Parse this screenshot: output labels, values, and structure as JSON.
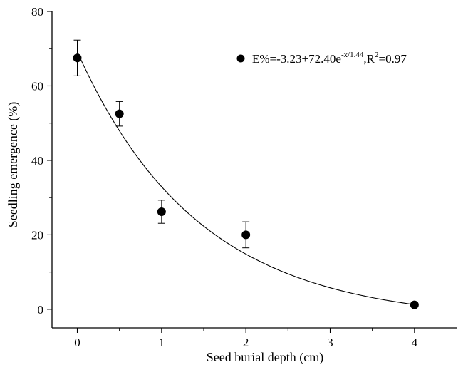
{
  "chart_data": {
    "type": "scatter",
    "xlabel": "Seed burial depth (cm)",
    "ylabel": "Seedling emergence (%)",
    "xlim": [
      -0.3,
      4.5
    ],
    "ylim": [
      -5,
      80
    ],
    "x_ticks": [
      0,
      1,
      2,
      3,
      4
    ],
    "y_ticks": [
      0,
      20,
      40,
      60,
      80
    ],
    "grid": false,
    "legend_position": "top-right",
    "points": [
      {
        "x": 0,
        "y": 67.5,
        "err": 4.8
      },
      {
        "x": 0.5,
        "y": 52.5,
        "err": 3.3
      },
      {
        "x": 1,
        "y": 26.2,
        "err": 3.1
      },
      {
        "x": 2,
        "y": 20.0,
        "err": 3.5
      },
      {
        "x": 4,
        "y": 1.2,
        "err": 0
      }
    ],
    "fit": {
      "a": -3.23,
      "b": 72.4,
      "c": 1.44,
      "x_range": [
        0,
        4
      ]
    },
    "legend": {
      "text_main": "E%=-3.23+72.40e",
      "text_sup": "-x/1.44",
      "text_mid": ",R",
      "text_sup2": "2",
      "text_end": "=0.97"
    }
  }
}
